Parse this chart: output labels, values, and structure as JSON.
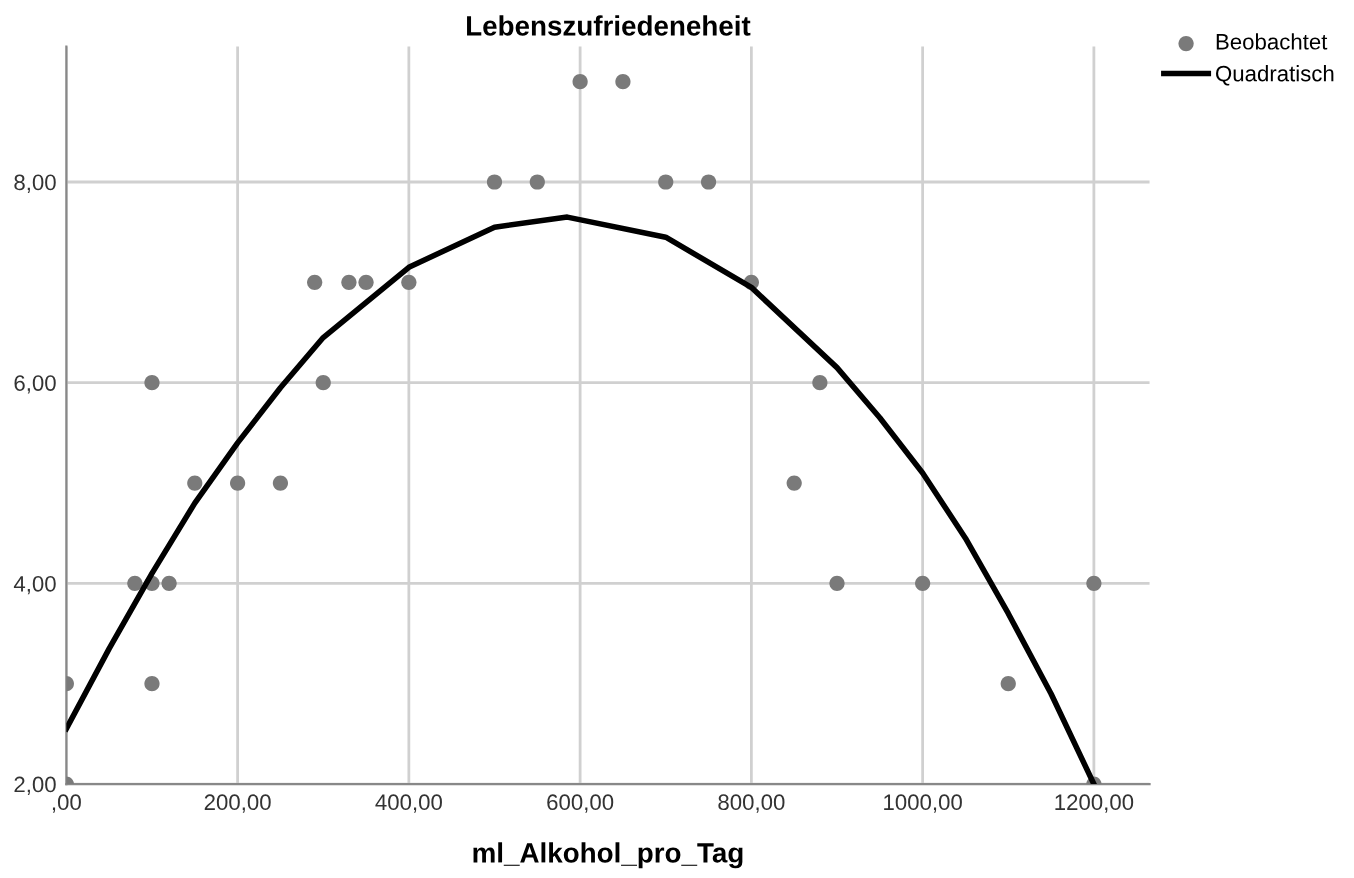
{
  "chart_data": {
    "type": "scatter",
    "title": "Lebenszufriedeneheit",
    "xlabel": "ml_Alkohol_pro_Tag",
    "xlim": [
      0,
      1265
    ],
    "ylim": [
      2,
      9.35
    ],
    "xticks": [
      {
        "value": 0,
        "label": ",00"
      },
      {
        "value": 200,
        "label": "200,00"
      },
      {
        "value": 400,
        "label": "400,00"
      },
      {
        "value": 600,
        "label": "600,00"
      },
      {
        "value": 800,
        "label": "800,00"
      },
      {
        "value": 1000,
        "label": "1000,00"
      },
      {
        "value": 1200,
        "label": "1200,00"
      }
    ],
    "yticks": [
      {
        "value": 2,
        "label": "2,00"
      },
      {
        "value": 4,
        "label": "4,00"
      },
      {
        "value": 6,
        "label": "6,00"
      },
      {
        "value": 8,
        "label": "8,00"
      }
    ],
    "grid": true,
    "legend": "top right",
    "series": [
      {
        "name": "Beobachtet",
        "type": "scatter",
        "marker": "circle",
        "color": "#7a7a7a",
        "x": [
          0,
          0,
          80,
          100,
          120,
          100,
          100,
          150,
          200,
          250,
          290,
          300,
          330,
          350,
          400,
          500,
          550,
          600,
          650,
          700,
          750,
          800,
          850,
          880,
          900,
          1000,
          1100,
          1200,
          1200
        ],
        "values": [
          3,
          2,
          4,
          4,
          4,
          6,
          3,
          5,
          5,
          5,
          7,
          6,
          7,
          7,
          7,
          8,
          8,
          9,
          9,
          8,
          8,
          7,
          5,
          6,
          4,
          4,
          3,
          4,
          2
        ]
      },
      {
        "name": "Quadratisch",
        "type": "line",
        "color": "#000000",
        "marker": "none",
        "x": [
          0,
          50,
          100,
          150,
          200,
          250,
          300,
          400,
          500,
          585,
          700,
          800,
          900,
          950,
          1000,
          1050,
          1100,
          1150,
          1200
        ],
        "values": [
          2.55,
          3.35,
          4.1,
          4.8,
          5.4,
          5.95,
          6.45,
          7.15,
          7.55,
          7.65,
          7.45,
          6.95,
          6.15,
          5.65,
          5.1,
          4.45,
          3.7,
          2.9,
          2.0
        ]
      }
    ]
  }
}
